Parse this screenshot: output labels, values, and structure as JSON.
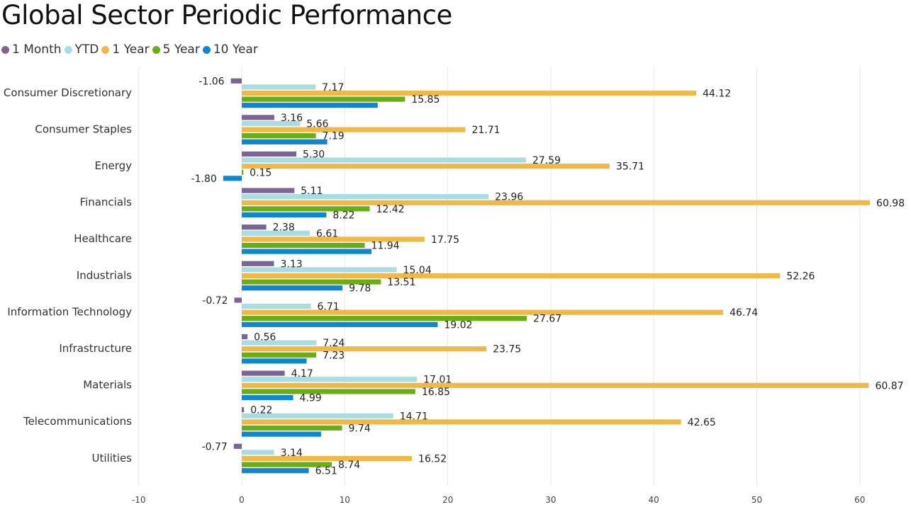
{
  "chart_data": {
    "type": "bar",
    "orientation": "horizontal",
    "title": "Global Sector Periodic Performance",
    "categories": [
      "Consumer Discretionary",
      "Consumer Staples",
      "Energy",
      "Financials",
      "Healthcare",
      "Industrials",
      "Information Technology",
      "Infrastructure",
      "Materials",
      "Telecommunications",
      "Utilities"
    ],
    "series": [
      {
        "name": "1 Month",
        "color": "#7b6593",
        "values": [
          -1.06,
          3.16,
          5.3,
          5.11,
          2.38,
          3.13,
          -0.72,
          0.56,
          4.17,
          0.22,
          -0.77
        ],
        "labels": [
          "-1.06",
          "3.16",
          "5.30",
          "5.11",
          "2.38",
          "3.13",
          "-0.72",
          "0.56",
          "4.17",
          "0.22",
          "-0.77"
        ]
      },
      {
        "name": "YTD",
        "color": "#a8dde3",
        "values": [
          7.17,
          5.66,
          27.59,
          23.96,
          6.61,
          15.04,
          6.71,
          7.24,
          17.01,
          14.71,
          3.14
        ],
        "labels": [
          "7.17",
          "5.66",
          "27.59",
          "23.96",
          "6.61",
          "15.04",
          "6.71",
          "7.24",
          "17.01",
          "14.71",
          "3.14"
        ]
      },
      {
        "name": "1 Year",
        "color": "#efb94a",
        "values": [
          44.12,
          21.71,
          35.71,
          60.98,
          17.75,
          52.26,
          46.74,
          23.75,
          60.87,
          42.65,
          16.52
        ],
        "labels": [
          "44.12",
          "21.71",
          "35.71",
          "60.98",
          "17.75",
          "52.26",
          "46.74",
          "23.75",
          "60.87",
          "42.65",
          "16.52"
        ]
      },
      {
        "name": "5 Year",
        "color": "#6aad15",
        "values": [
          15.85,
          7.19,
          0.15,
          12.42,
          11.94,
          13.51,
          27.67,
          7.23,
          16.85,
          9.74,
          8.74
        ],
        "labels": [
          "15.85",
          "7.19",
          "0.15",
          "12.42",
          "11.94",
          "13.51",
          "27.67",
          "7.23",
          "16.85",
          "9.74",
          "8.74"
        ]
      },
      {
        "name": "10 Year",
        "color": "#0f86cf",
        "values": [
          13.2,
          8.3,
          -1.8,
          8.22,
          12.6,
          9.78,
          19.02,
          6.3,
          4.99,
          7.7,
          6.51
        ],
        "labels": [
          "",
          "",
          "-1.80",
          "8.22",
          "",
          "9.78",
          "19.02",
          "",
          "4.99",
          "",
          "6.51"
        ]
      }
    ],
    "xlim": [
      -10,
      62
    ],
    "xticks": [
      "-10",
      "0",
      "10",
      "20",
      "30",
      "40",
      "50",
      "60"
    ],
    "xtick_values": [
      -10,
      0,
      10,
      20,
      30,
      40,
      50,
      60
    ],
    "grid": true,
    "legend_position": "top-left"
  }
}
